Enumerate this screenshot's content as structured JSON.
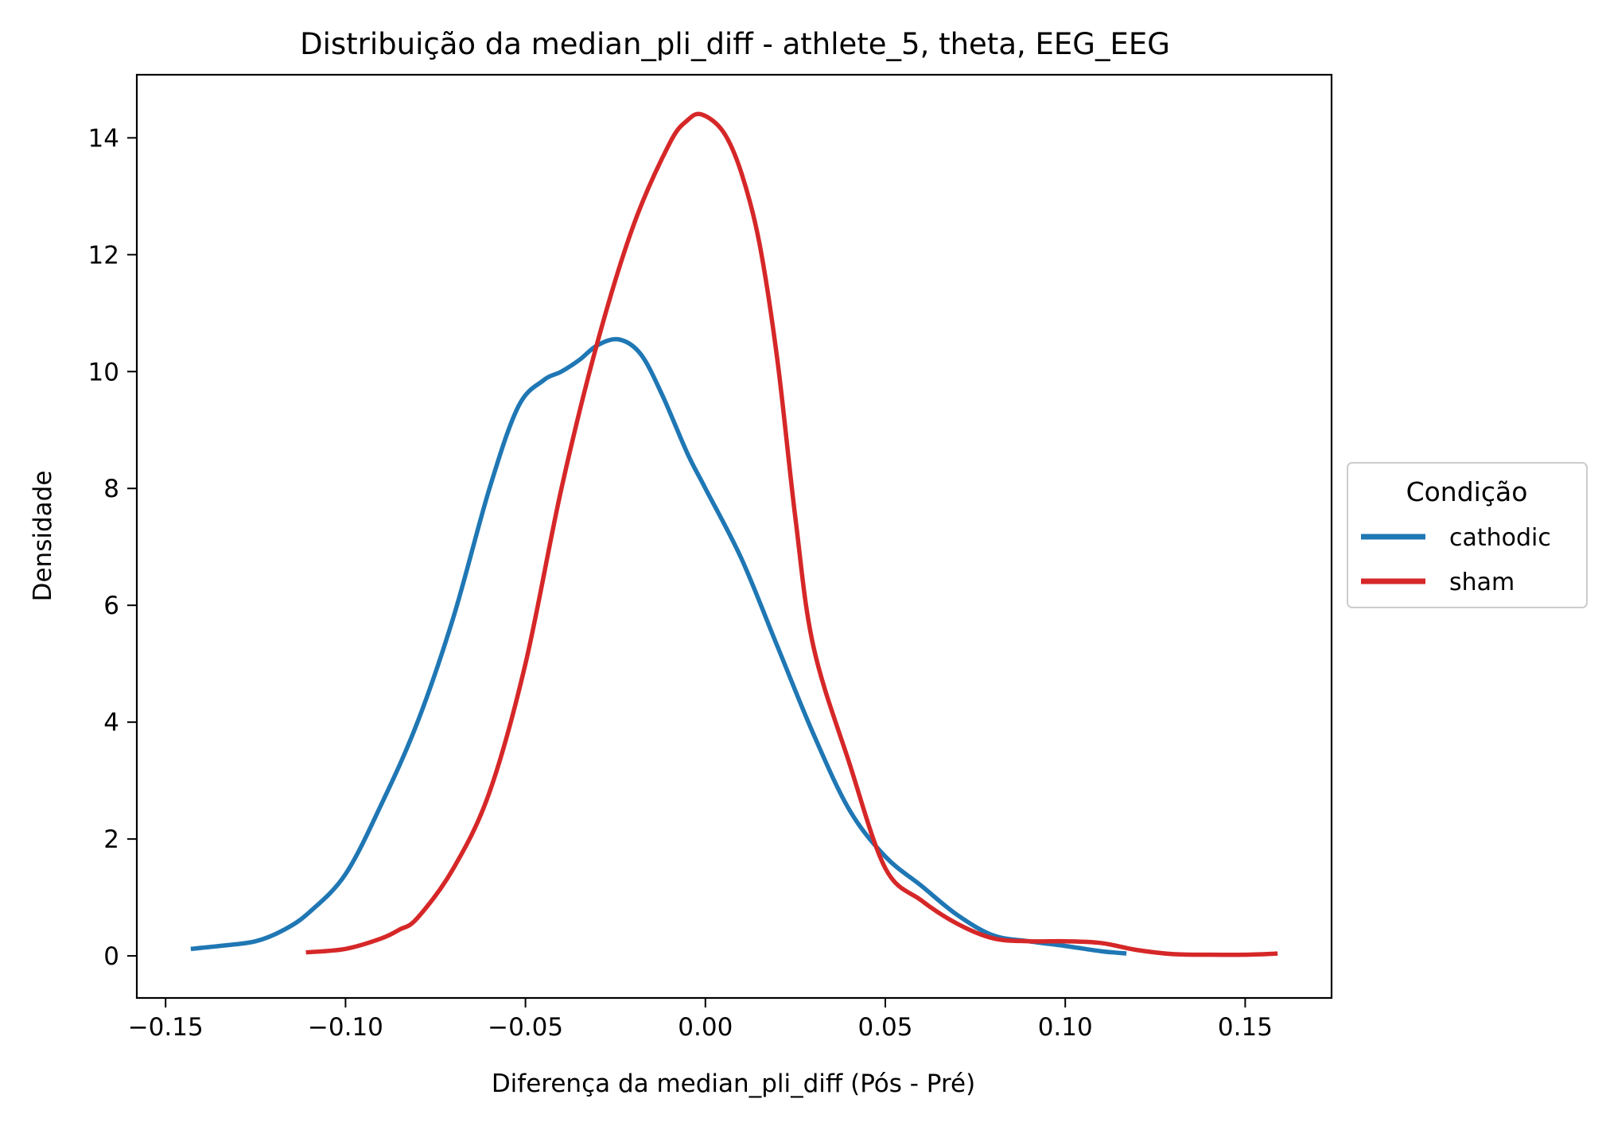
{
  "chart_data": {
    "type": "line",
    "title": "Distribuição da median_pli_diff - athlete_5, theta, EEG_EEG",
    "xlabel": "Diferença da median_pli_diff (Pós - Pré)",
    "ylabel": "Densidade",
    "xlim": [
      -0.158,
      0.174
    ],
    "ylim": [
      -0.72,
      15.08
    ],
    "xticks": [
      -0.15,
      -0.1,
      -0.05,
      0.0,
      0.05,
      0.1,
      0.15
    ],
    "xtick_labels": [
      "−0.15",
      "−0.10",
      "−0.05",
      "0.00",
      "0.05",
      "0.10",
      "0.15"
    ],
    "yticks": [
      0,
      2,
      4,
      6,
      8,
      10,
      12,
      14
    ],
    "ytick_labels": [
      "0",
      "2",
      "4",
      "6",
      "8",
      "10",
      "12",
      "14"
    ],
    "grid": false,
    "legend": {
      "title": "Condição",
      "placement": "outside-right"
    },
    "series": [
      {
        "name": "cathodic",
        "color": "#1f77b4",
        "x": [
          -0.143,
          -0.135,
          -0.125,
          -0.117,
          -0.11,
          -0.1,
          -0.09,
          -0.08,
          -0.07,
          -0.06,
          -0.052,
          -0.045,
          -0.04,
          -0.035,
          -0.03,
          -0.024,
          -0.018,
          -0.012,
          -0.005,
          0.0,
          0.01,
          0.02,
          0.03,
          0.04,
          0.05,
          0.06,
          0.07,
          0.08,
          0.09,
          0.1,
          0.11,
          0.117
        ],
        "y": [
          0.12,
          0.17,
          0.25,
          0.45,
          0.75,
          1.4,
          2.6,
          4.0,
          5.8,
          8.0,
          9.4,
          9.85,
          10.0,
          10.2,
          10.45,
          10.55,
          10.3,
          9.6,
          8.6,
          8.0,
          6.8,
          5.3,
          3.8,
          2.5,
          1.7,
          1.2,
          0.7,
          0.35,
          0.25,
          0.17,
          0.08,
          0.04
        ]
      },
      {
        "name": "sham",
        "color": "#d62728",
        "x": [
          -0.111,
          -0.1,
          -0.09,
          -0.085,
          -0.08,
          -0.07,
          -0.06,
          -0.05,
          -0.04,
          -0.03,
          -0.02,
          -0.01,
          -0.005,
          -0.001,
          0.005,
          0.01,
          0.015,
          0.02,
          0.025,
          0.03,
          0.04,
          0.05,
          0.06,
          0.07,
          0.08,
          0.09,
          0.1,
          0.11,
          0.12,
          0.13,
          0.14,
          0.15,
          0.159
        ],
        "y": [
          0.06,
          0.12,
          0.3,
          0.45,
          0.65,
          1.5,
          2.8,
          5.0,
          8.0,
          10.5,
          12.5,
          13.9,
          14.3,
          14.4,
          14.1,
          13.4,
          12.2,
          10.2,
          7.5,
          5.3,
          3.3,
          1.5,
          0.95,
          0.55,
          0.3,
          0.25,
          0.25,
          0.22,
          0.1,
          0.03,
          0.02,
          0.02,
          0.04
        ]
      }
    ]
  }
}
